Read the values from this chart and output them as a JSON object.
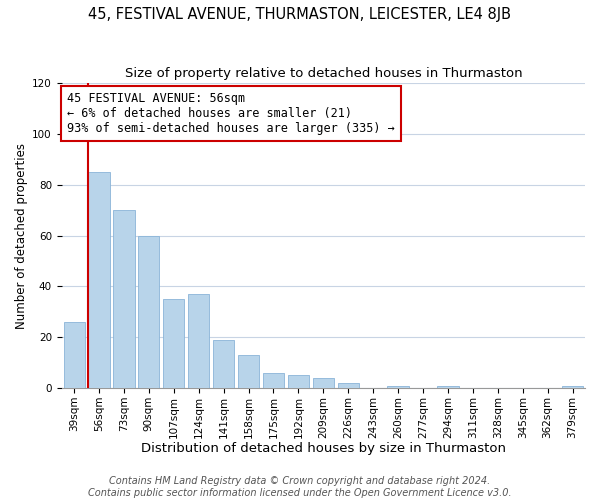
{
  "title": "45, FESTIVAL AVENUE, THURMASTON, LEICESTER, LE4 8JB",
  "subtitle": "Size of property relative to detached houses in Thurmaston",
  "xlabel": "Distribution of detached houses by size in Thurmaston",
  "ylabel": "Number of detached properties",
  "footer_line1": "Contains HM Land Registry data © Crown copyright and database right 2024.",
  "footer_line2": "Contains public sector information licensed under the Open Government Licence v3.0.",
  "bin_labels": [
    "39sqm",
    "56sqm",
    "73sqm",
    "90sqm",
    "107sqm",
    "124sqm",
    "141sqm",
    "158sqm",
    "175sqm",
    "192sqm",
    "209sqm",
    "226sqm",
    "243sqm",
    "260sqm",
    "277sqm",
    "294sqm",
    "311sqm",
    "328sqm",
    "345sqm",
    "362sqm",
    "379sqm"
  ],
  "bar_values": [
    26,
    85,
    70,
    60,
    35,
    37,
    19,
    13,
    6,
    5,
    4,
    2,
    0,
    1,
    0,
    1,
    0,
    0,
    0,
    0,
    1
  ],
  "bar_color": "#b8d4ea",
  "bar_edge_color": "#8ab4d8",
  "highlight_bin_index": 1,
  "highlight_color": "#cc0000",
  "annotation_line1": "45 FESTIVAL AVENUE: 56sqm",
  "annotation_line2": "← 6% of detached houses are smaller (21)",
  "annotation_line3": "93% of semi-detached houses are larger (335) →",
  "annotation_box_color": "#ffffff",
  "annotation_box_edgecolor": "#cc0000",
  "ylim": [
    0,
    120
  ],
  "yticks": [
    0,
    20,
    40,
    60,
    80,
    100,
    120
  ],
  "background_color": "#ffffff",
  "grid_color": "#c8d4e4",
  "title_fontsize": 10.5,
  "subtitle_fontsize": 9.5,
  "xlabel_fontsize": 9.5,
  "ylabel_fontsize": 8.5,
  "tick_fontsize": 7.5,
  "annotation_fontsize": 8.5,
  "footer_fontsize": 7
}
